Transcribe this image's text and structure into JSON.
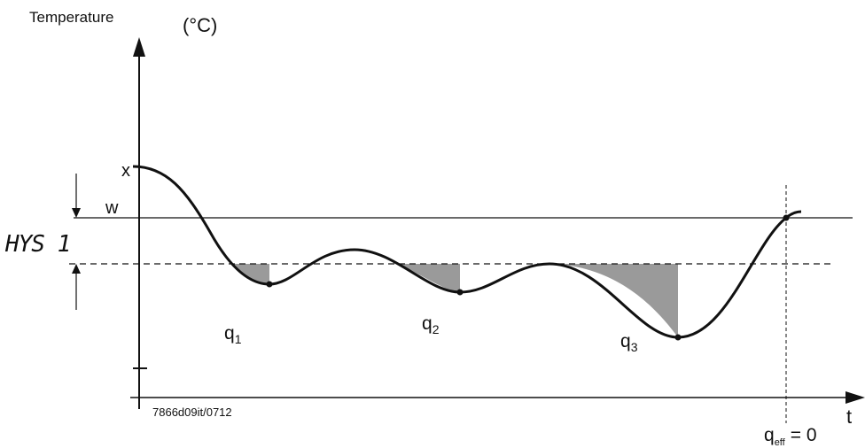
{
  "axes": {
    "y_label": "Temperature",
    "y_unit": "(°C)",
    "x_label": "t"
  },
  "levels": {
    "actual_start": "x",
    "setpoint": "w",
    "hysteresis": "HYS 1"
  },
  "areas": [
    {
      "label": "q",
      "index": "1"
    },
    {
      "label": "q",
      "index": "2"
    },
    {
      "label": "q",
      "index": "3"
    }
  ],
  "result": {
    "label": "q",
    "subscript": "eff",
    "equation": "= 0"
  },
  "drawing_code": "7866d09it/0712",
  "colors": {
    "ink": "#111111",
    "shaded_area": "#9a9a9a"
  }
}
